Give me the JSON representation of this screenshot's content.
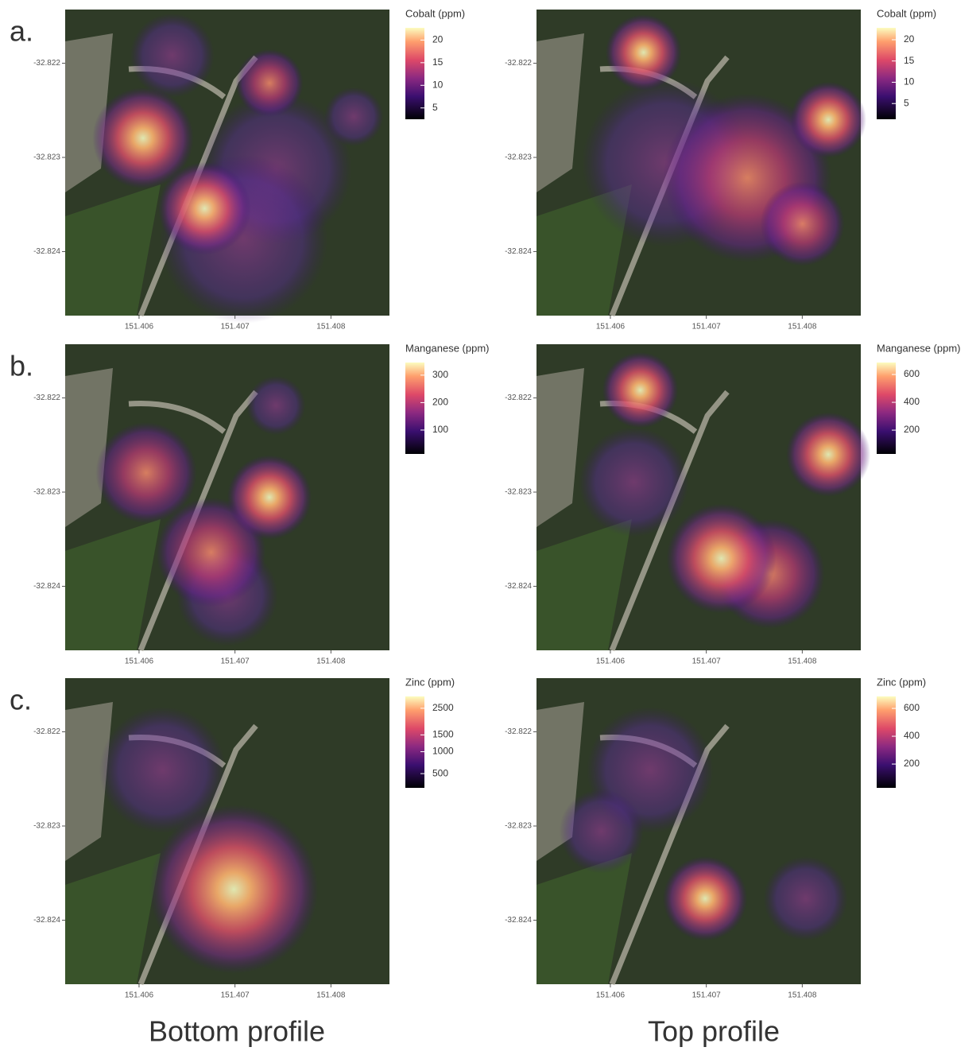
{
  "axes": {
    "xlim": [
      151.40523,
      151.40861
    ],
    "ylim": [
      -32.82468,
      -32.82143
    ],
    "xticks": [
      151.406,
      151.407,
      151.408
    ],
    "yticks": [
      -32.822,
      -32.823,
      -32.824
    ]
  },
  "rows": [
    {
      "label": "a.",
      "panels": [
        {
          "legend": {
            "title": "Cobalt (ppm)",
            "ticks": [
              20,
              15,
              10,
              5
            ],
            "lim": [
              2.5,
              22.7
            ],
            "scale": "linear"
          }
        },
        {
          "legend": {
            "title": "Cobalt (ppm)",
            "ticks": [
              20,
              15,
              10,
              5
            ],
            "lim": [
              1.3,
              22.8
            ],
            "scale": "linear"
          }
        }
      ]
    },
    {
      "label": "b.",
      "panels": [
        {
          "legend": {
            "title": "Manganese (ppm)",
            "ticks": [
              300,
              200,
              100
            ],
            "lim": [
              13,
              346
            ],
            "scale": "linear"
          }
        },
        {
          "legend": {
            "title": "Manganese (ppm)",
            "ticks": [
              600,
              400,
              200
            ],
            "lim": [
              29,
              686
            ],
            "scale": "linear"
          }
        }
      ]
    },
    {
      "label": "c.",
      "panels": [
        {
          "legend": {
            "title": "Zinc (ppm)",
            "ticks": [
              2500,
              1500,
              1000,
              500
            ],
            "lim": [
              267,
              3025
            ],
            "scale": "sqrt"
          }
        },
        {
          "legend": {
            "title": "Zinc (ppm)",
            "ticks": [
              600,
              400,
              200
            ],
            "lim": [
              29,
              686
            ],
            "scale": "linear"
          }
        }
      ]
    }
  ],
  "columns": [
    "Bottom profile",
    "Top profile"
  ]
}
